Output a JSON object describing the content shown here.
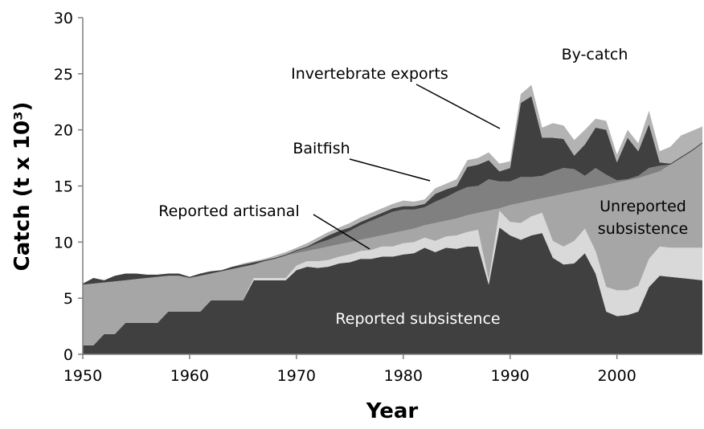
{
  "chart_data": {
    "type": "stacked_area",
    "xlabel": "Year",
    "ylabel": "Catch (t x 10³)",
    "x": [
      1950,
      1951,
      1952,
      1953,
      1954,
      1955,
      1956,
      1957,
      1958,
      1959,
      1960,
      1961,
      1962,
      1963,
      1964,
      1965,
      1966,
      1967,
      1968,
      1969,
      1970,
      1971,
      1972,
      1973,
      1974,
      1975,
      1976,
      1977,
      1978,
      1979,
      1980,
      1981,
      1982,
      1983,
      1984,
      1985,
      1986,
      1987,
      1988,
      1989,
      1990,
      1991,
      1992,
      1993,
      1994,
      1995,
      1996,
      1997,
      1998,
      1999,
      2000,
      2001,
      2002,
      2003,
      2004,
      2005,
      2006,
      2007,
      2008
    ],
    "xlim": [
      1950,
      2008
    ],
    "xticks": [
      1950,
      1960,
      1970,
      1980,
      1990,
      2000
    ],
    "ylim": [
      0,
      30
    ],
    "yticks": [
      0,
      5,
      10,
      15,
      20,
      25,
      30
    ],
    "series": [
      {
        "name": "Reported subsistence",
        "color": "#404040",
        "values": [
          0.8,
          0.8,
          1.8,
          1.8,
          2.8,
          2.8,
          2.8,
          2.8,
          3.8,
          3.8,
          3.8,
          3.8,
          4.8,
          4.8,
          4.8,
          4.8,
          6.6,
          6.6,
          6.6,
          6.6,
          7.5,
          7.8,
          7.7,
          7.8,
          8.1,
          8.2,
          8.5,
          8.5,
          8.7,
          8.7,
          8.9,
          9.0,
          9.5,
          9.1,
          9.5,
          9.4,
          9.6,
          9.6,
          6.2,
          11.3,
          10.6,
          10.2,
          10.6,
          10.8,
          8.6,
          8.0,
          8.1,
          9.0,
          7.2,
          3.8,
          3.4,
          3.5,
          3.8,
          6.0,
          7.0,
          6.9,
          6.8,
          6.7,
          6.6
        ]
      },
      {
        "name": "Reported artisanal",
        "color": "#d9d9d9",
        "values": [
          0,
          0,
          0,
          0,
          0,
          0,
          0,
          0,
          0,
          0,
          0,
          0,
          0,
          0,
          0,
          0,
          0.2,
          0.2,
          0.2,
          0.2,
          0.4,
          0.5,
          0.6,
          0.6,
          0.6,
          0.7,
          0.7,
          0.8,
          0.9,
          0.9,
          1.0,
          1.0,
          0.9,
          1.0,
          1.0,
          1.2,
          1.3,
          1.5,
          0.4,
          1.5,
          1.2,
          1.5,
          1.7,
          1.8,
          1.5,
          1.6,
          2.0,
          2.2,
          2.0,
          2.2,
          2.3,
          2.2,
          2.3,
          2.5,
          2.6,
          2.6,
          2.7,
          2.8,
          2.9
        ]
      },
      {
        "name": "Unreported subsistence",
        "color": "#a6a6a6",
        "values": [
          5.4,
          5.5,
          4.6,
          4.7,
          3.8,
          3.9,
          4.0,
          4.1,
          3.2,
          3.2,
          3.0,
          3.2,
          2.4,
          2.6,
          2.8,
          3.0,
          1.2,
          1.5,
          1.7,
          2.0,
          1.1,
          0.9,
          1.1,
          1.2,
          1.1,
          1.1,
          1.0,
          1.1,
          1.0,
          1.2,
          1.1,
          1.2,
          1.1,
          1.6,
          1.4,
          1.5,
          1.5,
          1.5,
          6.2,
          0.2,
          1.5,
          1.8,
          1.4,
          1.3,
          4.0,
          4.7,
          4.4,
          3.5,
          5.7,
          9.1,
          9.6,
          9.8,
          9.6,
          7.5,
          6.7,
          7.4,
          8.0,
          8.6,
          9.3
        ]
      },
      {
        "name": "Baitfish",
        "color": "#808080",
        "values": [
          0,
          0,
          0,
          0,
          0,
          0,
          0,
          0,
          0,
          0,
          0,
          0,
          0,
          0,
          0,
          0,
          0,
          0,
          0,
          0,
          0.2,
          0.3,
          0.5,
          0.6,
          0.8,
          1.0,
          1.3,
          1.5,
          1.7,
          1.9,
          1.9,
          1.7,
          1.6,
          1.9,
          2.1,
          2.4,
          2.5,
          2.4,
          2.8,
          2.4,
          2.1,
          2.3,
          2.1,
          2.0,
          2.2,
          2.3,
          2.0,
          1.2,
          1.7,
          0.9,
          0.2,
          0.1,
          0.2,
          0.6,
          0.5,
          0,
          0,
          0,
          0
        ]
      },
      {
        "name": "Invertebrate exports",
        "color": "#404040",
        "values": [
          0.1,
          0.5,
          0.2,
          0.5,
          0.6,
          0.5,
          0.3,
          0.2,
          0.2,
          0.2,
          0.1,
          0.2,
          0.2,
          0.1,
          0.2,
          0.2,
          0.2,
          0.1,
          0.1,
          0.1,
          0.1,
          0.1,
          0.2,
          0.4,
          0.4,
          0.3,
          0.3,
          0.3,
          0.3,
          0.3,
          0.3,
          0.3,
          0.3,
          0.7,
          0.7,
          0.5,
          1.8,
          1.9,
          1.7,
          0.9,
          1.2,
          6.6,
          7.2,
          3.4,
          3.0,
          2.6,
          1.2,
          2.8,
          3.6,
          4.0,
          1.6,
          3.7,
          2.2,
          3.9,
          0.3,
          0.1,
          0.1,
          0.1,
          0.1
        ]
      },
      {
        "name": "By-catch",
        "color": "#b3b3b3",
        "values": [
          0,
          0,
          0,
          0,
          0,
          0,
          0,
          0,
          0,
          0,
          0,
          0,
          0,
          0,
          0,
          0.1,
          0.1,
          0.1,
          0.2,
          0.2,
          0.2,
          0.3,
          0.3,
          0.3,
          0.3,
          0.4,
          0.4,
          0.4,
          0.4,
          0.4,
          0.5,
          0.4,
          0.4,
          0.5,
          0.5,
          0.6,
          0.6,
          0.6,
          0.7,
          0.7,
          0.6,
          0.8,
          1.0,
          0.9,
          1.3,
          1.2,
          1.4,
          1.3,
          0.8,
          0.8,
          0.7,
          0.7,
          0.7,
          1.2,
          1.0,
          1.5,
          1.9,
          1.7,
          1.4
        ]
      }
    ]
  }
}
